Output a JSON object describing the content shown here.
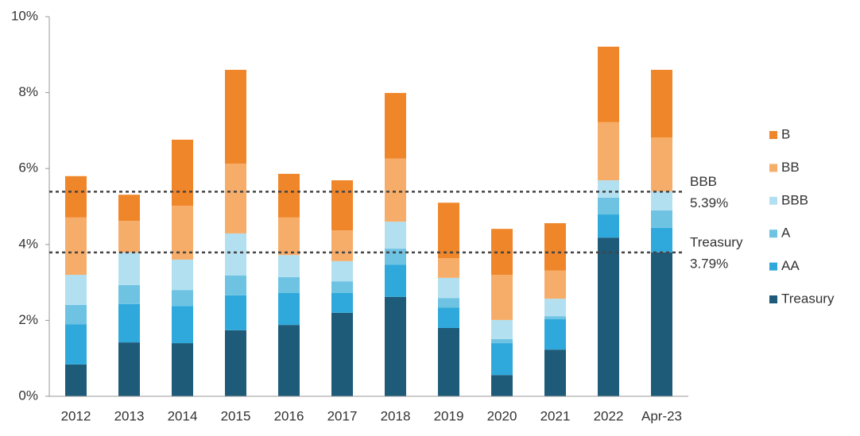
{
  "chart_data": {
    "type": "stacked_bar",
    "categories": [
      "2012",
      "2013",
      "2014",
      "2015",
      "2016",
      "2017",
      "2018",
      "2019",
      "2020",
      "2021",
      "2022",
      "Apr-23"
    ],
    "series": [
      {
        "name": "Treasury",
        "color": "#1d5b79",
        "values": [
          0.84,
          1.42,
          1.4,
          1.74,
          1.88,
          2.2,
          2.62,
          1.8,
          0.56,
          1.23,
          4.18,
          3.79
        ]
      },
      {
        "name": "AA",
        "color": "#2fa9dc",
        "values": [
          1.06,
          1.01,
          0.98,
          0.92,
          0.84,
          0.52,
          0.85,
          0.54,
          0.84,
          0.8,
          0.61,
          0.65
        ]
      },
      {
        "name": "A",
        "color": "#6ec3e3",
        "values": [
          0.51,
          0.5,
          0.42,
          0.52,
          0.42,
          0.31,
          0.42,
          0.25,
          0.11,
          0.08,
          0.44,
          0.46
        ]
      },
      {
        "name": "BBB",
        "color": "#b3e0f0",
        "values": [
          0.79,
          0.86,
          0.8,
          1.11,
          0.58,
          0.53,
          0.71,
          0.53,
          0.5,
          0.46,
          0.46,
          0.5
        ]
      },
      {
        "name": "BB",
        "color": "#f7ad6a",
        "values": [
          1.51,
          0.83,
          1.42,
          1.84,
          0.99,
          0.81,
          1.66,
          0.52,
          1.19,
          0.74,
          1.53,
          1.42
        ]
      },
      {
        "name": "B",
        "color": "#f0862a",
        "values": [
          1.09,
          0.69,
          1.74,
          2.47,
          1.15,
          1.32,
          1.73,
          1.46,
          1.21,
          1.25,
          1.99,
          1.78
        ]
      }
    ],
    "ylim": [
      0,
      10
    ],
    "yticks": [
      {
        "value": 0,
        "label": "0%"
      },
      {
        "value": 2,
        "label": "2%"
      },
      {
        "value": 4,
        "label": "4%"
      },
      {
        "value": 6,
        "label": "6%"
      },
      {
        "value": 8,
        "label": "8%"
      },
      {
        "value": 10,
        "label": "10%"
      }
    ],
    "reference_lines": [
      {
        "name": "BBB",
        "value": 5.39,
        "label": "5.39%"
      },
      {
        "name": "Treasury",
        "value": 3.79,
        "label": "3.79%"
      }
    ],
    "legend": "right"
  }
}
